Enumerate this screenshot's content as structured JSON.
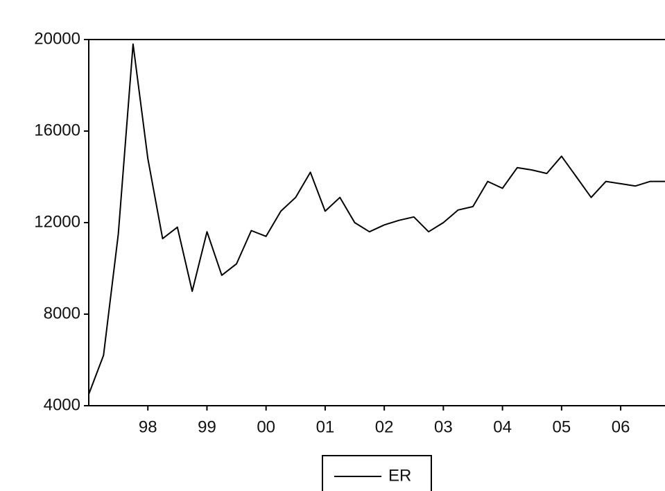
{
  "chart_data": {
    "type": "line",
    "x": [
      1997.5,
      1997.75,
      1998.0,
      1998.25,
      1998.5,
      1998.75,
      1999.0,
      1999.25,
      1999.5,
      1999.75,
      2000.0,
      2000.25,
      2000.5,
      2000.75,
      2001.0,
      2001.25,
      2001.5,
      2001.75,
      2002.0,
      2002.25,
      2002.5,
      2002.75,
      2003.0,
      2003.25,
      2003.5,
      2003.75,
      2004.0,
      2004.25,
      2004.5,
      2004.75,
      2005.0,
      2005.25,
      2005.5,
      2005.75,
      2006.0,
      2006.25,
      2006.5,
      2006.75,
      2007.0,
      2007.25
    ],
    "series": [
      {
        "name": "ER",
        "color": "#000000",
        "values": [
          4500,
          6200,
          11500,
          19800,
          14800,
          11300,
          11800,
          9000,
          11600,
          9700,
          10200,
          11650,
          11400,
          12500,
          13100,
          14200,
          12500,
          13100,
          12000,
          11600,
          11900,
          12100,
          12250,
          11600,
          12000,
          12550,
          12700,
          13800,
          13500,
          14400,
          14300,
          14150,
          14900,
          14000,
          13100,
          13800,
          13700,
          13600,
          13800,
          13800
        ]
      }
    ],
    "xlim": [
      1997.5,
      2007.25
    ],
    "xticks": [
      {
        "value": 1998.5,
        "label": "98"
      },
      {
        "value": 1999.5,
        "label": "99"
      },
      {
        "value": 2000.5,
        "label": "00"
      },
      {
        "value": 2001.5,
        "label": "01"
      },
      {
        "value": 2002.5,
        "label": "02"
      },
      {
        "value": 2003.5,
        "label": "03"
      },
      {
        "value": 2004.5,
        "label": "04"
      },
      {
        "value": 2005.5,
        "label": "05"
      },
      {
        "value": 2006.5,
        "label": "06"
      }
    ],
    "ylim": [
      4000,
      20000
    ],
    "yticks": [
      4000,
      8000,
      12000,
      16000,
      20000
    ],
    "grid": false,
    "legend": "bottom"
  }
}
